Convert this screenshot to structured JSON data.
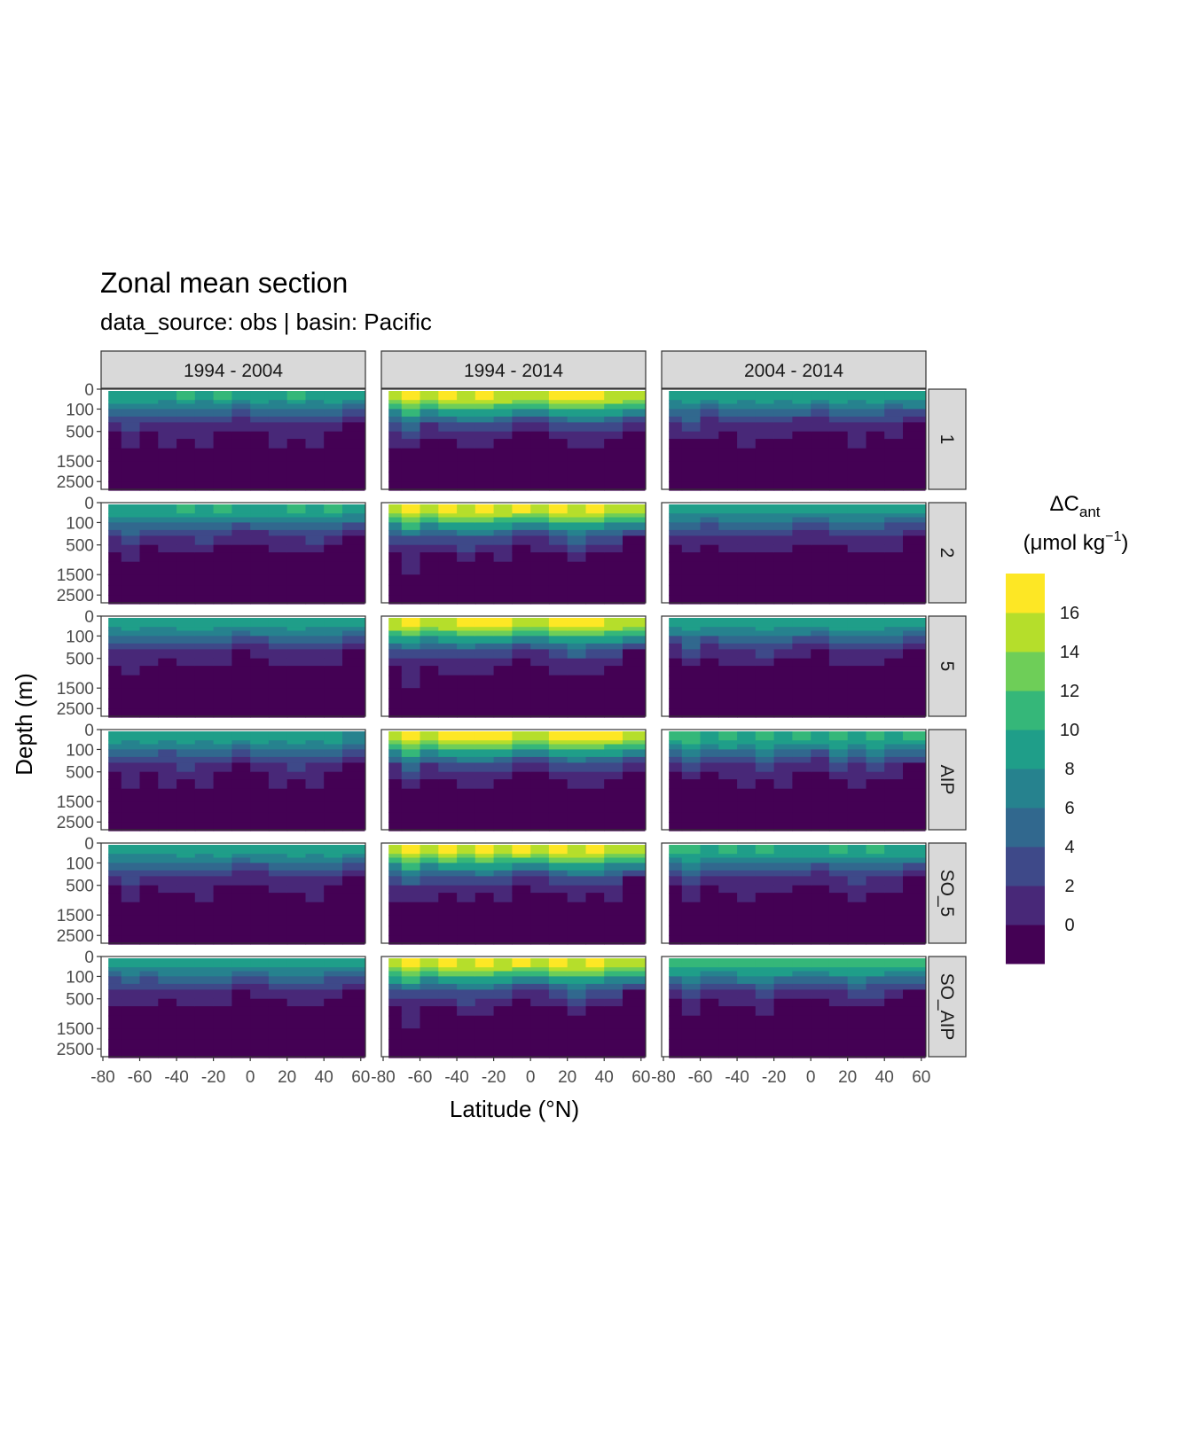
{
  "chart_data": {
    "type": "heatmap",
    "title": "Zonal mean section",
    "subtitle": "data_source:  obs | basin: Pacific",
    "xlabel": "Latitude (°N)",
    "ylabel": "Depth (m)",
    "legend_title_main": "ΔC",
    "legend_title_sub": "ant",
    "legend_unit_pre": "(μmol kg",
    "legend_unit_sup": "−1",
    "legend_unit_post": ")",
    "legend_position": "right",
    "col_facets": [
      "1994 - 2004",
      "1994 - 2014",
      "2004 - 2014"
    ],
    "row_facets": [
      "1",
      "2",
      "5",
      "AIP",
      "SO_5",
      "SO_AIP"
    ],
    "x_ticks": [
      -80,
      -60,
      -40,
      -20,
      0,
      20,
      40,
      60
    ],
    "x_tick_labels": [
      "-80",
      "-60",
      "-40",
      "-20",
      "0",
      "20",
      "40",
      "60"
    ],
    "xlim": [
      -80,
      63
    ],
    "y_ticks": [
      0,
      100,
      500,
      1500,
      2500
    ],
    "y_tick_labels": [
      "0",
      "100",
      "500",
      "1500",
      "2500"
    ],
    "ylim": [
      3000,
      0
    ],
    "y_scale": "sqrt, reversed",
    "legend_ticks": [
      0,
      2,
      4,
      6,
      8,
      10,
      12,
      14,
      16
    ],
    "legend_tick_labels": [
      "0",
      "2",
      "4",
      "6",
      "8",
      "10",
      "12",
      "14",
      "16"
    ],
    "legend_range": [
      -2,
      18
    ],
    "levels": [
      -2,
      0,
      2,
      4,
      6,
      8,
      10,
      12,
      14,
      16,
      18
    ],
    "colors": [
      "#440154",
      "#482878",
      "#3e4989",
      "#31688e",
      "#26828e",
      "#1f9e89",
      "#35b779",
      "#6ece58",
      "#b5de2b",
      "#fde725"
    ],
    "grid_lon": [
      -77,
      -70,
      -60,
      -50,
      -40,
      -30,
      -20,
      -10,
      0,
      10,
      20,
      30,
      40,
      50,
      62
    ],
    "grid_depth": [
      0,
      25,
      50,
      100,
      200,
      300,
      500,
      700,
      1000,
      1500,
      2000,
      2500,
      3000
    ],
    "peak_cant": {
      "1994 - 2004": [
        10,
        10.5,
        9.5,
        9.5,
        9.5,
        9
      ],
      "1994 - 2014": [
        17,
        17,
        17,
        17,
        17,
        17
      ],
      "2004 - 2014": [
        9.5,
        9,
        9.5,
        11,
        10.5,
        11.5
      ]
    }
  }
}
